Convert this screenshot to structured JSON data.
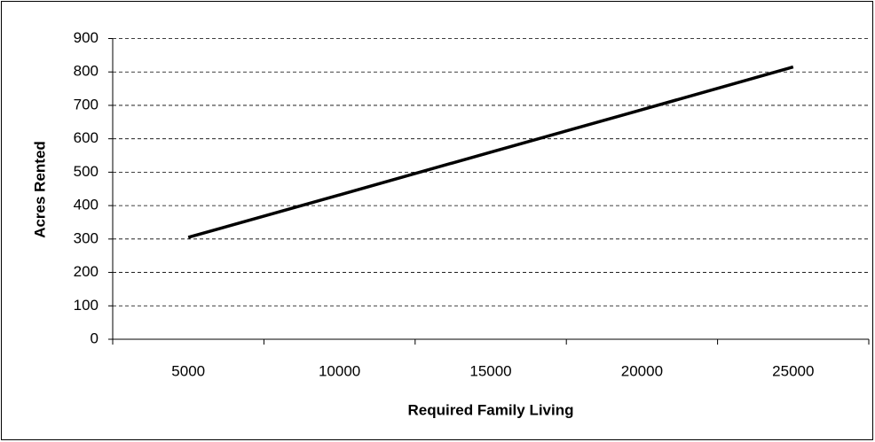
{
  "chart_data": {
    "type": "line",
    "x_label": "Required Family Living",
    "y_label": "Acres Rented",
    "categories": [
      "5000",
      "10000",
      "15000",
      "20000",
      "25000"
    ],
    "values": [
      305,
      432,
      560,
      687,
      815
    ],
    "color": "#000000",
    "ylim": [
      0,
      900
    ],
    "yticks": [
      0,
      100,
      200,
      300,
      400,
      500,
      600,
      700,
      800,
      900
    ],
    "grid": true
  }
}
